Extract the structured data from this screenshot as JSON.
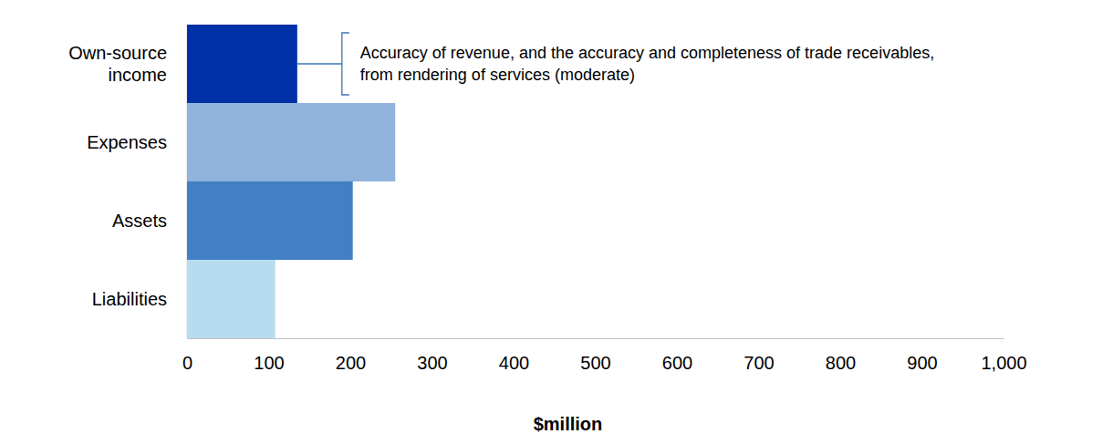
{
  "chart_data": {
    "type": "bar",
    "orientation": "horizontal",
    "categories": [
      "Own-source income",
      "Expenses",
      "Assets",
      "Liabilities"
    ],
    "values": [
      135,
      255,
      203,
      108
    ],
    "colors": [
      "#0030a8",
      "#8fb3dc",
      "#437fc4",
      "#b8dcef"
    ],
    "xlim": [
      0,
      1000
    ],
    "xticks": [
      0,
      100,
      200,
      300,
      400,
      500,
      600,
      700,
      800,
      900,
      {
        "value": 1000,
        "label": "1,000"
      }
    ],
    "xlabel": "$million",
    "grid": false,
    "annotations": [
      {
        "text": "Accuracy of revenue, and the accuracy and completeness of trade receivables, from rendering of services (moderate)",
        "category": "Own-source income"
      }
    ]
  }
}
